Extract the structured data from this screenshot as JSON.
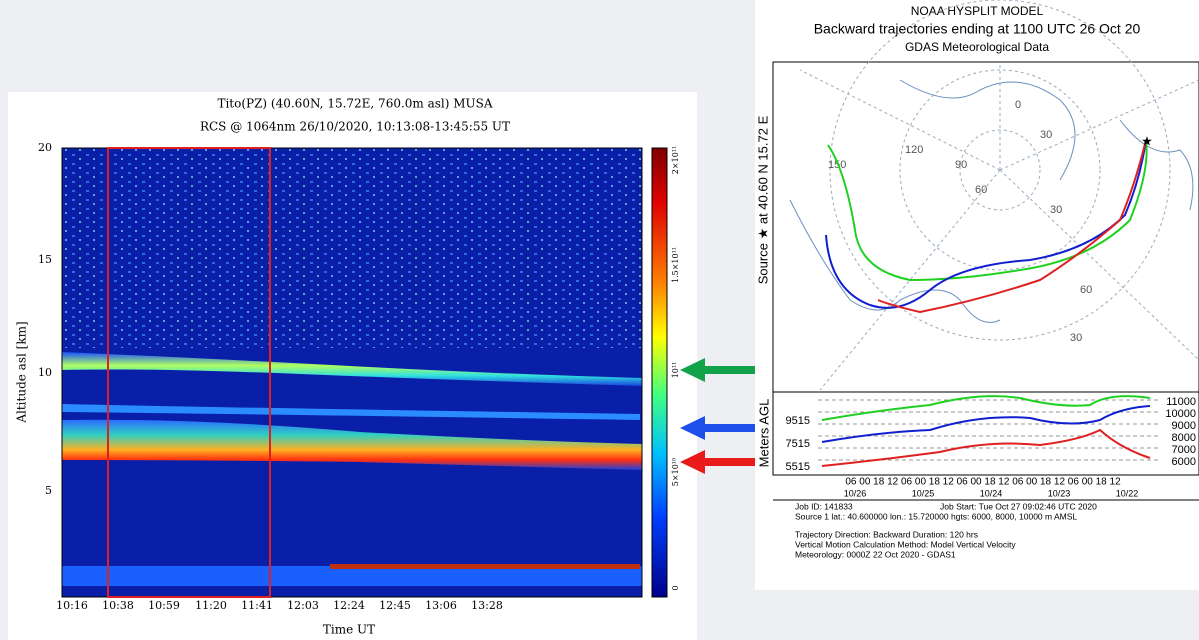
{
  "lidar_panel": {
    "title": "Tito(PZ) (40.60N, 15.72E, 760.0m asl) MUSA",
    "subtitle": "RCS @ 1064nm 26/10/2020, 10:13:08-13:45:55 UT",
    "y_axis_label": "Altitude asl [km]",
    "x_axis_label": "Time UT",
    "y_tick_labels": [
      "20",
      "15",
      "10",
      "5"
    ],
    "x_tick_labels": [
      "10:16",
      "10:38",
      "10:59",
      "11:20",
      "11:41",
      "12:03",
      "12:24",
      "12:45",
      "13:06",
      "13:28"
    ],
    "colorbar_labels": [
      "2×10¹¹",
      "1.5×10¹¹",
      "10¹¹",
      "5×10¹⁰",
      "0"
    ]
  },
  "hysplit_panel": {
    "title": "NOAA HYSPLIT MODEL",
    "subtitle": "Backward trajectories ending at 1100 UTC 26 Oct 20",
    "data_source": "GDAS Meteorological Data",
    "source_label": "Source ★  at  40.60 N  15.72 E",
    "map_labels": [
      "150",
      "120",
      "90",
      "60",
      "30",
      "0",
      "30",
      "60",
      "30"
    ],
    "height_axis_label": "Meters AGL",
    "start_heights": [
      "9515",
      "7515",
      "5515"
    ],
    "height_ticks": [
      "11000",
      "10000",
      "9000",
      "8000",
      "7000",
      "6000"
    ],
    "time_ticks": "06 00 18 12 06 00 18 12 06 00 18 12 06 00 18 12 06 00 18 12",
    "date_labels": [
      "10/26",
      "10/25",
      "10/24",
      "10/23",
      "10/22"
    ],
    "info_lines": [
      "Job ID: 141833",
      "Job Start: Tue Oct 27 09:02:46 UTC 2020",
      "Source 1 lat.: 40.600000  lon.: 15.720000  hgts: 6000, 8000, 10000 m AMSL",
      "Trajectory Direction: Backward     Duration: 120 hrs",
      "Vertical Motion Calculation Method:      Model Vertical Velocity",
      "Meteorology: 0000Z 22 Oct 2020 - GDAS1"
    ]
  }
}
